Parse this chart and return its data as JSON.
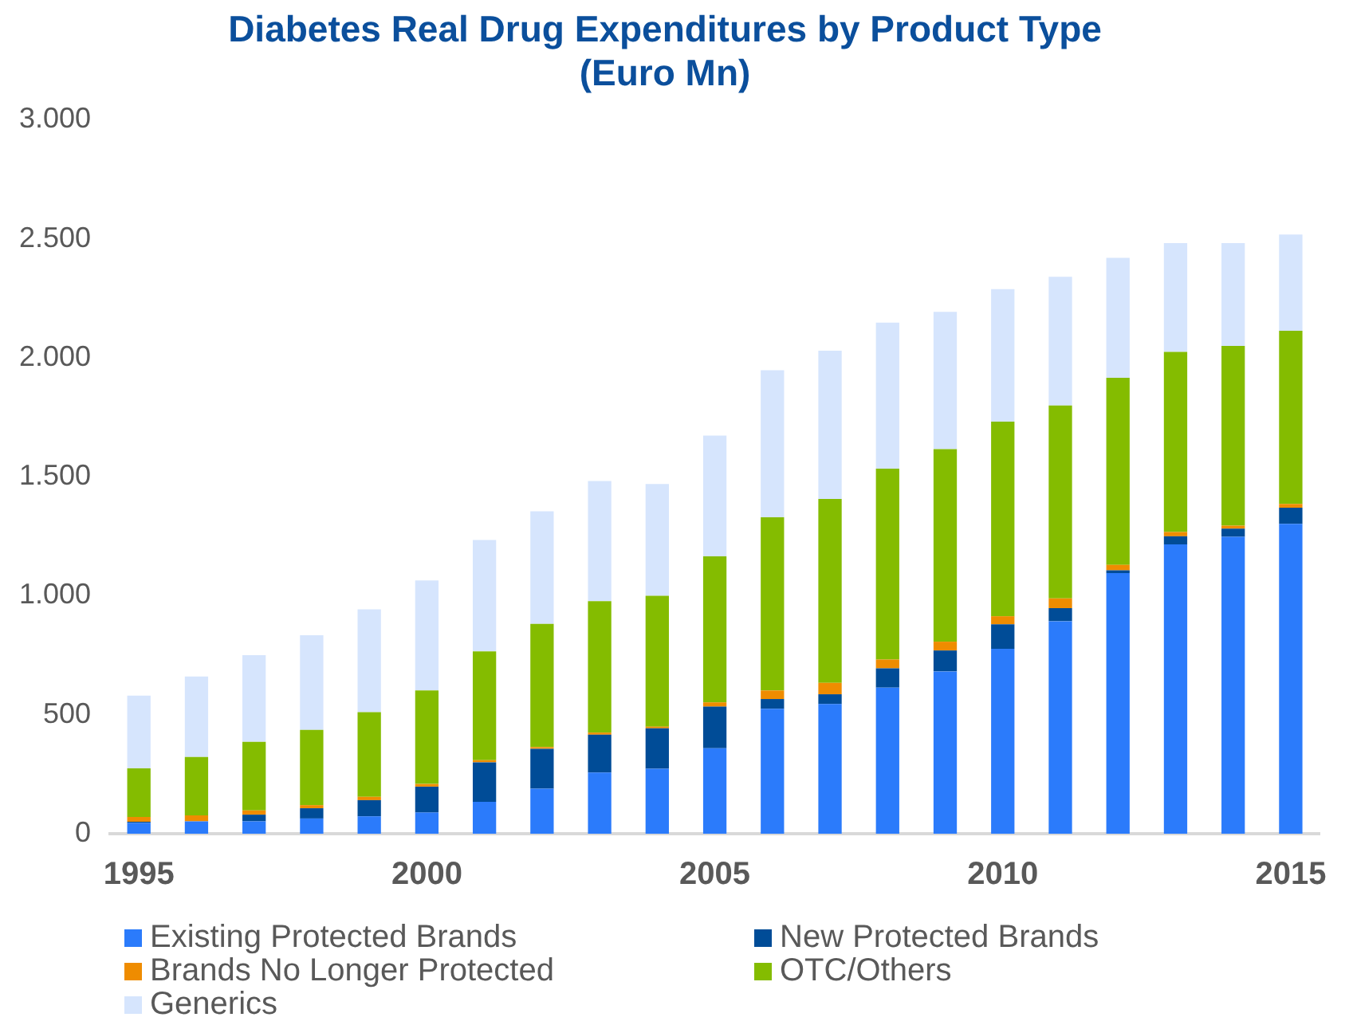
{
  "chart_data": {
    "type": "bar",
    "title": [
      "Diabetes Real Drug Expenditures by Product Type",
      "(Euro Mn)"
    ],
    "categories": [
      "1995",
      null,
      null,
      null,
      null,
      "2000",
      null,
      null,
      null,
      null,
      "2005",
      null,
      null,
      null,
      null,
      "2010",
      null,
      null,
      null,
      null,
      "2015"
    ],
    "stacked": true,
    "legend": "bottom",
    "grid": false,
    "ylim": [
      0,
      3000
    ],
    "yticks": [
      {
        "value": 0,
        "label": "0"
      },
      {
        "value": 500,
        "label": "500"
      },
      {
        "value": 1000,
        "label": "1.000"
      },
      {
        "value": 1500,
        "label": "1.500"
      },
      {
        "value": 2000,
        "label": "2.000"
      },
      {
        "value": 2500,
        "label": "2.500"
      },
      {
        "value": 3000,
        "label": "3.000"
      }
    ],
    "series": [
      {
        "name": "Existing Protected Brands",
        "color": "#2b7bfb",
        "values": [
          45,
          52,
          52,
          64,
          73,
          89,
          134,
          189,
          257,
          273,
          359,
          525,
          545,
          614,
          682,
          777,
          893,
          1095,
          1216,
          1248,
          1302
        ]
      },
      {
        "name": "New Protected Brands",
        "color": "#004c97",
        "values": [
          5,
          null,
          28,
          43,
          68,
          109,
          166,
          168,
          159,
          170,
          175,
          41,
          41,
          81,
          88,
          103,
          55,
          12,
          34,
          34,
          68
        ]
      },
      {
        "name": "Brands No Longer Protected",
        "color": "#ef8c00",
        "values": [
          20,
          25,
          18,
          13,
          14,
          11,
          9,
          7,
          9,
          7,
          18,
          36,
          48,
          37,
          37,
          34,
          41,
          23,
          18,
          13,
          16
        ]
      },
      {
        "name": "OTC/Others",
        "color": "#84bc00",
        "values": [
          205,
          245,
          288,
          316,
          356,
          393,
          457,
          518,
          552,
          550,
          614,
          728,
          773,
          802,
          809,
          818,
          811,
          786,
          757,
          755,
          728
        ]
      },
      {
        "name": "Generics",
        "color": "#d6e5fd",
        "values": [
          305,
          339,
          364,
          398,
          432,
          462,
          468,
          473,
          505,
          470,
          507,
          618,
          623,
          614,
          577,
          557,
          541,
          504,
          457,
          432,
          404
        ]
      }
    ]
  }
}
